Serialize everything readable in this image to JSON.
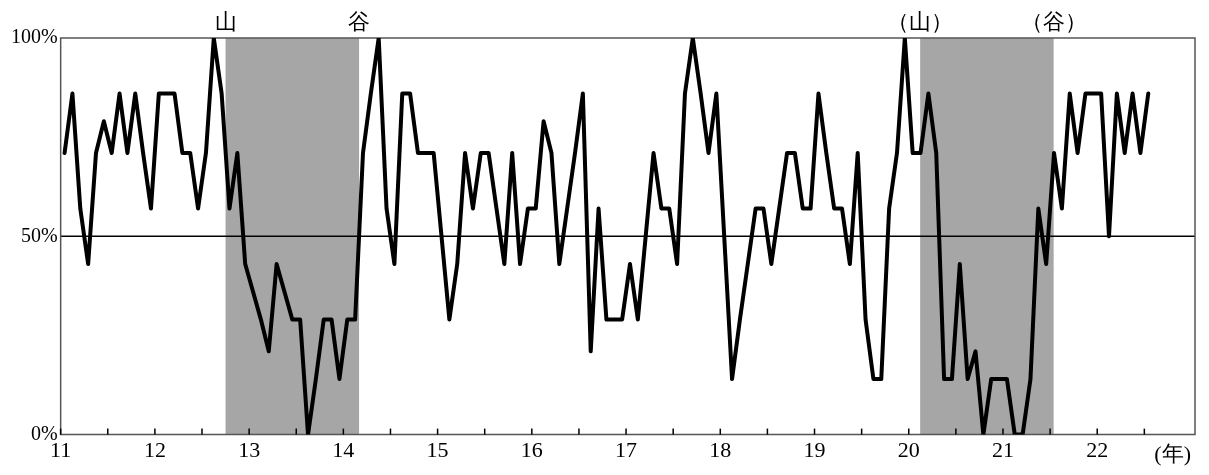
{
  "chart_data": {
    "type": "line",
    "xlabel": "(年)",
    "x": [
      "2011-01",
      "2011-02",
      "2011-03",
      "2011-04",
      "2011-05",
      "2011-06",
      "2011-07",
      "2011-08",
      "2011-09",
      "2011-10",
      "2011-11",
      "2011-12",
      "2012-01",
      "2012-02",
      "2012-03",
      "2012-04",
      "2012-05",
      "2012-06",
      "2012-07",
      "2012-08",
      "2012-09",
      "2012-10",
      "2012-11",
      "2012-12",
      "2013-01",
      "2013-02",
      "2013-03",
      "2013-04",
      "2013-05",
      "2013-06",
      "2013-07",
      "2013-08",
      "2013-09",
      "2013-10",
      "2013-11",
      "2013-12",
      "2014-01",
      "2014-02",
      "2014-03",
      "2014-04",
      "2014-05",
      "2014-06",
      "2014-07",
      "2014-08",
      "2014-09",
      "2014-10",
      "2014-11",
      "2014-12",
      "2015-01",
      "2015-02",
      "2015-03",
      "2015-04",
      "2015-05",
      "2015-06",
      "2015-07",
      "2015-08",
      "2015-09",
      "2015-10",
      "2015-11",
      "2015-12",
      "2016-01",
      "2016-02",
      "2016-03",
      "2016-04",
      "2016-05",
      "2016-06",
      "2016-07",
      "2016-08",
      "2016-09",
      "2016-10",
      "2016-11",
      "2016-12",
      "2017-01",
      "2017-02",
      "2017-03",
      "2017-04",
      "2017-05",
      "2017-06",
      "2017-07",
      "2017-08",
      "2017-09",
      "2017-10",
      "2017-11",
      "2017-12",
      "2018-01",
      "2018-02",
      "2018-03",
      "2018-04",
      "2018-05",
      "2018-06",
      "2018-07",
      "2018-08",
      "2018-09",
      "2018-10",
      "2018-11",
      "2018-12",
      "2019-01",
      "2019-02",
      "2019-03",
      "2019-04",
      "2019-05",
      "2019-06",
      "2019-07",
      "2019-08",
      "2019-09",
      "2019-10",
      "2019-11",
      "2019-12",
      "2020-01",
      "2020-02",
      "2020-03",
      "2020-04",
      "2020-05",
      "2020-06",
      "2020-07",
      "2020-08",
      "2020-09",
      "2020-10",
      "2020-11",
      "2020-12",
      "2021-01",
      "2021-02",
      "2021-03",
      "2021-04",
      "2021-05",
      "2021-06",
      "2021-07",
      "2021-08",
      "2021-09",
      "2021-10",
      "2021-11",
      "2021-12",
      "2022-01",
      "2022-02",
      "2022-03",
      "2022-04",
      "2022-05",
      "2022-06",
      "2022-07"
    ],
    "series": [
      {
        "color": "#000000",
        "values": [
          71,
          86,
          57,
          43,
          71,
          79,
          71,
          86,
          71,
          86,
          71,
          57,
          86,
          86,
          86,
          71,
          71,
          57,
          71,
          100,
          86,
          57,
          71,
          43,
          36,
          29,
          21,
          43,
          36,
          29,
          29,
          0,
          14,
          29,
          29,
          14,
          29,
          29,
          71,
          86,
          100,
          57,
          43,
          86,
          86,
          71,
          71,
          71,
          50,
          29,
          43,
          71,
          57,
          71,
          71,
          57,
          43,
          71,
          43,
          57,
          57,
          79,
          71,
          43,
          57,
          71,
          86,
          21,
          57,
          29,
          29,
          29,
          43,
          29,
          50,
          71,
          57,
          57,
          43,
          86,
          100,
          86,
          71,
          86,
          50,
          14,
          29,
          43,
          57,
          57,
          43,
          57,
          71,
          71,
          57,
          57,
          86,
          71,
          57,
          57,
          43,
          71,
          29,
          14,
          14,
          57,
          71,
          100,
          71,
          71,
          86,
          71,
          14,
          14,
          43,
          14,
          21,
          0,
          14,
          14,
          14,
          0,
          0,
          14,
          57,
          43,
          71,
          57,
          86,
          71,
          86,
          86,
          86,
          50,
          86,
          71,
          86,
          71,
          86
        ]
      }
    ],
    "xlim": [
      "2011-01-01",
      "2023-01-15"
    ],
    "xticks": [
      {
        "value": "2011-01-01",
        "label": "11"
      },
      {
        "value": "2011-07-01",
        "label": null
      },
      {
        "value": "2012-01-01",
        "label": "12"
      },
      {
        "value": "2012-07-01",
        "label": null
      },
      {
        "value": "2013-01-01",
        "label": "13"
      },
      {
        "value": "2013-07-01",
        "label": null
      },
      {
        "value": "2014-01-01",
        "label": "14"
      },
      {
        "value": "2014-07-01",
        "label": null
      },
      {
        "value": "2015-01-01",
        "label": "15"
      },
      {
        "value": "2015-07-01",
        "label": null
      },
      {
        "value": "2016-01-01",
        "label": "16"
      },
      {
        "value": "2016-07-01",
        "label": null
      },
      {
        "value": "2017-01-01",
        "label": "17"
      },
      {
        "value": "2017-07-01",
        "label": null
      },
      {
        "value": "2018-01-01",
        "label": "18"
      },
      {
        "value": "2018-07-01",
        "label": null
      },
      {
        "value": "2019-01-01",
        "label": "19"
      },
      {
        "value": "2019-07-01",
        "label": null
      },
      {
        "value": "2020-01-01",
        "label": "20"
      },
      {
        "value": "2020-07-01",
        "label": null
      },
      {
        "value": "2021-01-01",
        "label": "21"
      },
      {
        "value": "2021-07-01",
        "label": null
      },
      {
        "value": "2022-01-01",
        "label": "22"
      },
      {
        "value": "2022-07-01",
        "label": null
      }
    ],
    "ylim": [
      0,
      100
    ],
    "yticks": [
      {
        "value": 0,
        "label": "0%"
      },
      {
        "value": 50,
        "label": "50%"
      },
      {
        "value": 100,
        "label": "100%"
      }
    ],
    "ref_lines": [
      {
        "axis": "y",
        "value": 50,
        "color": "#000000"
      }
    ],
    "bands": [
      {
        "axis": "x",
        "from": "2012-10-01",
        "to": "2014-03-01",
        "color": "#a6a6a6"
      },
      {
        "axis": "x",
        "from": "2020-02-15",
        "to": "2021-07-15",
        "color": "#a6a6a6"
      }
    ],
    "annotations": [
      {
        "text": "山",
        "x": "2012-10-01",
        "y": 100
      },
      {
        "text": "谷",
        "x": "2014-03-01",
        "y": 100
      },
      {
        "text": "（山）",
        "x": "2020-02-15",
        "y": 100
      },
      {
        "text": "（谷）",
        "x": "2021-07-15",
        "y": 100
      }
    ],
    "grid": false,
    "legend": false,
    "marker": "none",
    "line_style": "solid"
  }
}
